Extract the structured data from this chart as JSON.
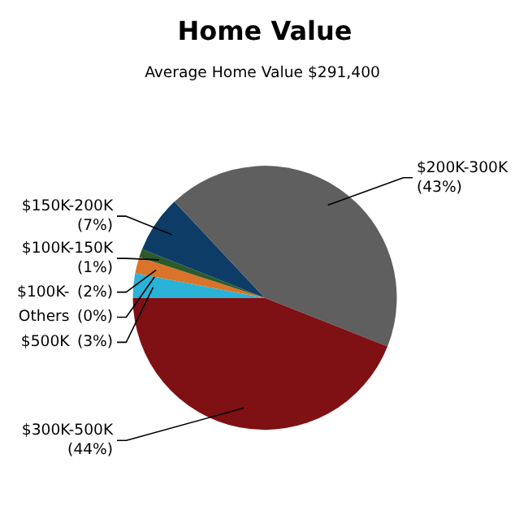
{
  "chart_data": {
    "type": "pie",
    "title": "Home Value",
    "subtitle": "Average Home Value  $291,400",
    "categories": [
      "$500K",
      "Others",
      "$100K-",
      "$100K-150K",
      "$150K-200K",
      "$200K-300K",
      "$300K-500K"
    ],
    "values": [
      3,
      0,
      2,
      1,
      7,
      43,
      44
    ],
    "colors": [
      "#2ab3d6",
      "#9a9a9a",
      "#d9742a",
      "#2d5a2a",
      "#0d3d66",
      "#5f5f5f",
      "#7f1014"
    ],
    "value_labels": [
      "(3%)",
      "(0%)",
      "(2%)",
      "(1%)",
      "(7%)",
      "(43%)",
      "(44%)"
    ]
  }
}
